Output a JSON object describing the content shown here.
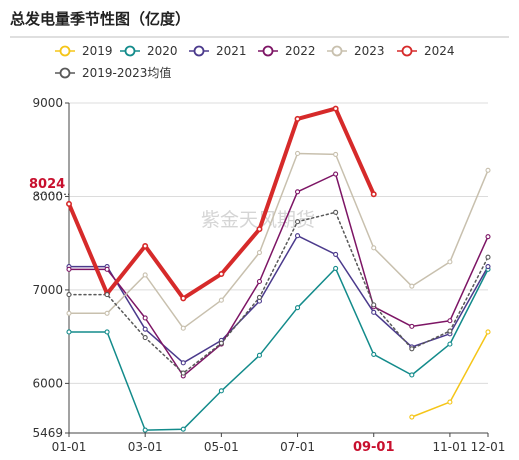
{
  "chart_data": {
    "type": "line",
    "title": "总发电量季节性图（亿度）",
    "watermark": "紫金天风期货",
    "x_ticks": [
      "01-01",
      "03-01",
      "05-01",
      "07-01",
      "09-01",
      "11-01",
      "12-01"
    ],
    "highlighted_x_tick": "09-01",
    "y_ticks": [
      5469,
      6000,
      7000,
      8000,
      9000
    ],
    "y_range": [
      5469,
      9000
    ],
    "last_value_label": "8024",
    "grid": true,
    "legend_placement": "top-left",
    "months": [
      1,
      2,
      3,
      4,
      5,
      6,
      7,
      8,
      9,
      10,
      11,
      12
    ],
    "series": [
      {
        "name": "2019",
        "color": "#F5C518",
        "dash": false,
        "width": 1.5,
        "values": [
          null,
          null,
          null,
          null,
          null,
          null,
          null,
          null,
          null,
          5640,
          5800,
          6550
        ]
      },
      {
        "name": "2020",
        "color": "#138B8B",
        "dash": false,
        "width": 1.5,
        "values": [
          6550,
          6550,
          5500,
          5510,
          5920,
          6300,
          6810,
          7230,
          6310,
          6090,
          6420,
          7220
        ]
      },
      {
        "name": "2021",
        "color": "#4B3A8C",
        "dash": false,
        "width": 1.5,
        "values": [
          7250,
          7250,
          6580,
          6220,
          6460,
          6880,
          7580,
          7380,
          6760,
          6390,
          6530,
          7250
        ]
      },
      {
        "name": "2022",
        "color": "#7D1565",
        "dash": false,
        "width": 1.5,
        "values": [
          7220,
          7220,
          6700,
          6080,
          6420,
          7090,
          8050,
          8240,
          6820,
          6610,
          6670,
          7570
        ]
      },
      {
        "name": "2023",
        "color": "#C8C0AE",
        "dash": false,
        "width": 1.5,
        "values": [
          6750,
          6750,
          7160,
          6590,
          6890,
          7400,
          8460,
          8450,
          7450,
          7040,
          7300,
          8280
        ]
      },
      {
        "name": "2024",
        "color": "#D62A2A",
        "dash": false,
        "width": 4,
        "values": [
          7920,
          6960,
          7470,
          6910,
          7170,
          7650,
          8830,
          8940,
          8024,
          null,
          null,
          null
        ]
      },
      {
        "name": "2019-2023均值",
        "color": "#595959",
        "dash": true,
        "width": 1.5,
        "values": [
          6950,
          6950,
          6490,
          6110,
          6430,
          6920,
          7730,
          7830,
          6840,
          6370,
          6560,
          7350
        ]
      }
    ]
  }
}
